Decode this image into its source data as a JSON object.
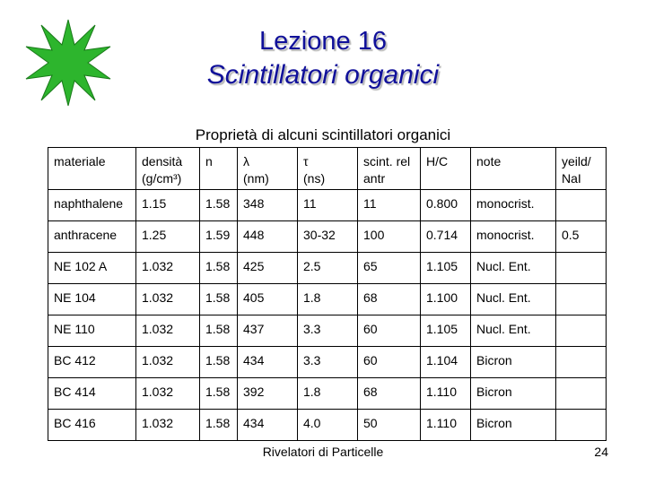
{
  "slide": {
    "title": "Lezione 16",
    "subtitle": "Scintillatori organici",
    "table_caption": "Proprietà di alcuni scintillatori organici",
    "footer": "Rivelatori di Particelle",
    "page_number": "24",
    "accent_color": "#10109a",
    "star_color": "#2db52d"
  },
  "table": {
    "headers": [
      {
        "top": "materiale",
        "bottom": ""
      },
      {
        "top": "densità",
        "bottom": "(g/cm³)"
      },
      {
        "top": "n",
        "bottom": ""
      },
      {
        "top": "λ",
        "bottom": "(nm)"
      },
      {
        "top": "τ",
        "bottom": "(ns)"
      },
      {
        "top": "scint. rel",
        "bottom": "antr"
      },
      {
        "top": "H/C",
        "bottom": ""
      },
      {
        "top": "note",
        "bottom": ""
      },
      {
        "top": "yeild/",
        "bottom": "NaI"
      }
    ],
    "rows": [
      [
        "naphthalene",
        "1.15",
        "1.58",
        "348",
        "11",
        "11",
        "0.800",
        "monocrist.",
        ""
      ],
      [
        "anthracene",
        "1.25",
        "1.59",
        "448",
        "30-32",
        "100",
        "0.714",
        "monocrist.",
        "0.5"
      ],
      [
        "NE 102 A",
        "1.032",
        "1.58",
        "425",
        "2.5",
        "65",
        "1.105",
        "Nucl. Ent.",
        ""
      ],
      [
        "NE 104",
        "1.032",
        "1.58",
        "405",
        "1.8",
        "68",
        "1.100",
        "Nucl. Ent.",
        ""
      ],
      [
        "NE 110",
        "1.032",
        "1.58",
        "437",
        "3.3",
        "60",
        "1.105",
        "Nucl. Ent.",
        ""
      ],
      [
        "BC 412",
        "1.032",
        "1.58",
        "434",
        "3.3",
        "60",
        "1.104",
        "Bicron",
        ""
      ],
      [
        "BC 414",
        "1.032",
        "1.58",
        "392",
        "1.8",
        "68",
        "1.110",
        "Bicron",
        ""
      ],
      [
        "BC 416",
        "1.032",
        "1.58",
        "434",
        "4.0",
        "50",
        "1.110",
        "Bicron",
        ""
      ]
    ]
  }
}
